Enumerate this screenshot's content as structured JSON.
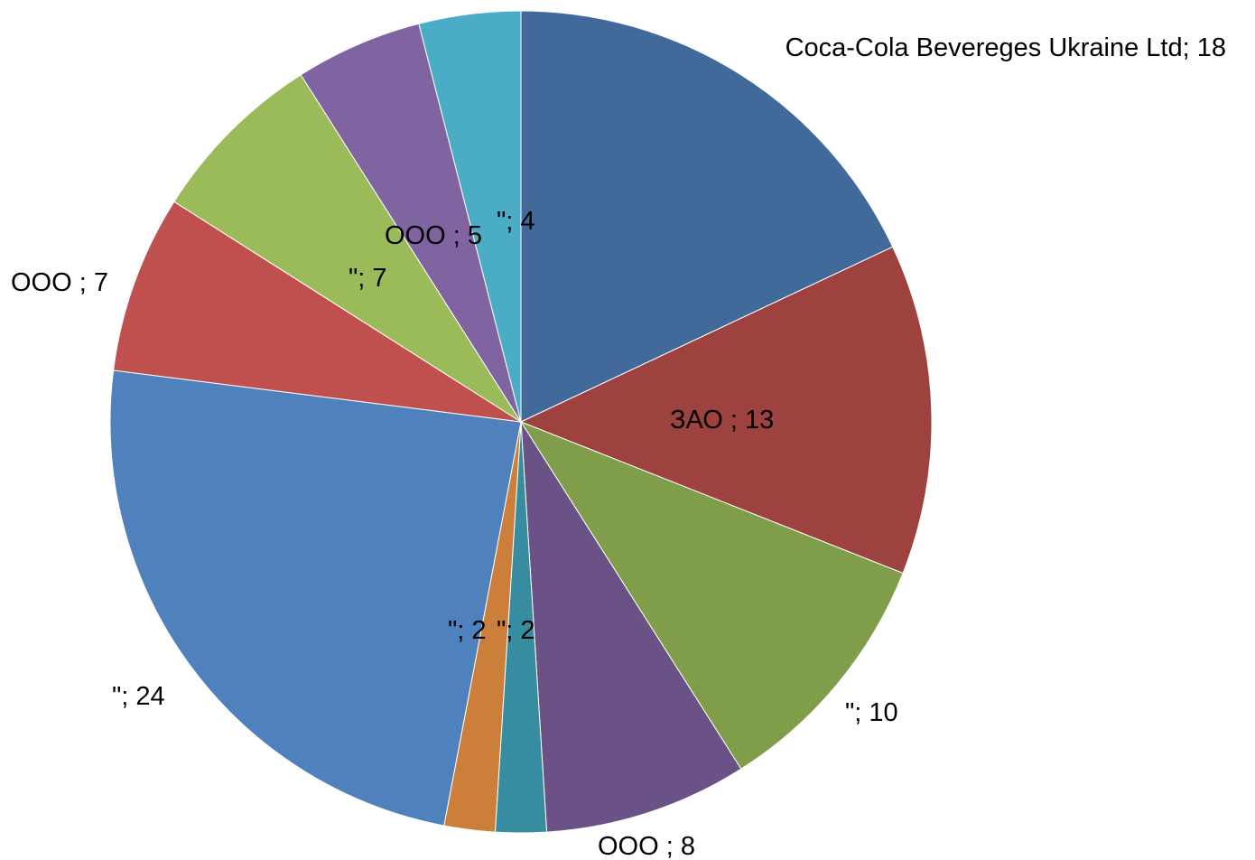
{
  "chart_data": {
    "type": "pie",
    "title": "",
    "legend": "none",
    "slices": [
      {
        "label": "Coca-Cola Bevereges Ukraine Ltd; 18",
        "name": "Coca-Cola Bevereges Ukraine Ltd",
        "value": 18,
        "color": "#416A9A"
      },
      {
        "label": "ЗАО ; 13",
        "name": "ЗАО ",
        "value": 13,
        "color": "#9E4240"
      },
      {
        "label": "\"; 10",
        "name": "\"",
        "value": 10,
        "color": "#809D4A"
      },
      {
        "label": "ООО ; 8",
        "name": "ООО ",
        "value": 8,
        "color": "#6A5287"
      },
      {
        "label": "\"; 2",
        "name": "\"",
        "value": 2,
        "color": "#378CA0"
      },
      {
        "label": "\"; 2",
        "name": "\"",
        "value": 2,
        "color": "#CC7E3B"
      },
      {
        "label": "\"; 24",
        "name": "\"",
        "value": 24,
        "color": "#4F81BC"
      },
      {
        "label": "ООО ; 7",
        "name": "ООО ",
        "value": 7,
        "color": "#BF504D"
      },
      {
        "label": "\"; 7",
        "name": "\"",
        "value": 7,
        "color": "#9BBA59"
      },
      {
        "label": "ООО ; 5",
        "name": "ООО ",
        "value": 5,
        "color": "#8064A2"
      },
      {
        "label": "\"; 4",
        "name": "\"",
        "value": 4,
        "color": "#4AACC5"
      }
    ]
  }
}
